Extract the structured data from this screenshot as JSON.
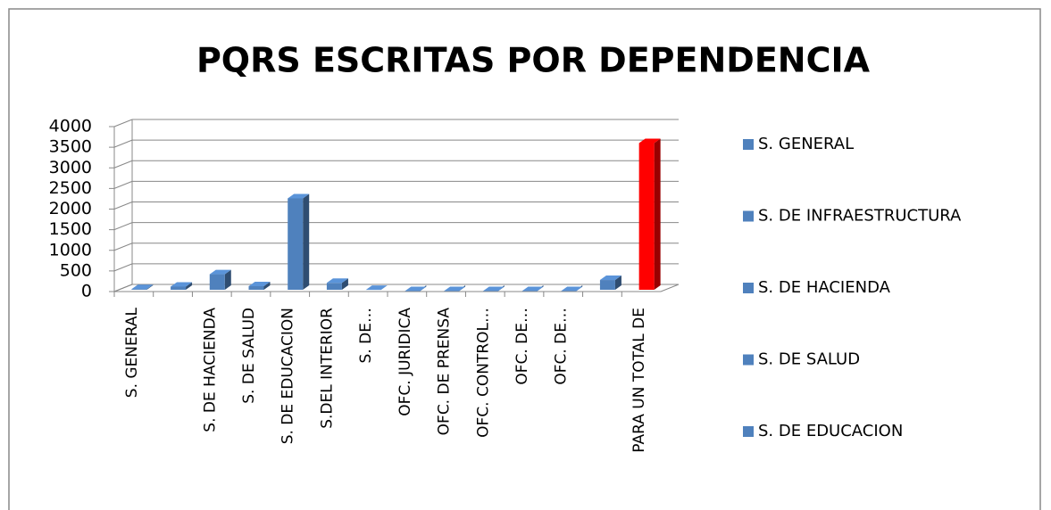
{
  "chart_data": {
    "type": "bar3d",
    "title": "PQRS ESCRITAS POR DEPENDENCIA",
    "categories": [
      "S. GENERAL",
      null,
      "S. DE HACIENDA",
      "S. DE SALUD",
      "S. DE EDUCACION",
      "S.DEL INTERIOR",
      "S. DE…",
      "OFC. JURIDICA",
      "OFC. DE PRENSA",
      "OFC. CONTROL…",
      "OFC. DE…",
      "OFC. DE…",
      null,
      "PARA UN TOTAL DE"
    ],
    "values": [
      60,
      120,
      420,
      130,
      2260,
      210,
      40,
      10,
      10,
      10,
      10,
      10,
      280,
      3600
    ],
    "colors": [
      "#4f81bd",
      "#4f81bd",
      "#4f81bd",
      "#4f81bd",
      "#4f81bd",
      "#4f81bd",
      "#4f81bd",
      "#4f81bd",
      "#4f81bd",
      "#4f81bd",
      "#4f81bd",
      "#4f81bd",
      "#4f81bd",
      "#ff0000"
    ],
    "legend": [
      "S. GENERAL",
      "S. DE INFRAESTRUCTURA",
      "S. DE HACIENDA",
      "S. DE SALUD",
      "S. DE EDUCACION"
    ],
    "legend_color": "#4f81bd",
    "ylim": [
      0,
      4000
    ],
    "yticks": [
      0,
      500,
      1000,
      1500,
      2000,
      2500,
      3000,
      3500,
      4000
    ],
    "grid": true
  }
}
